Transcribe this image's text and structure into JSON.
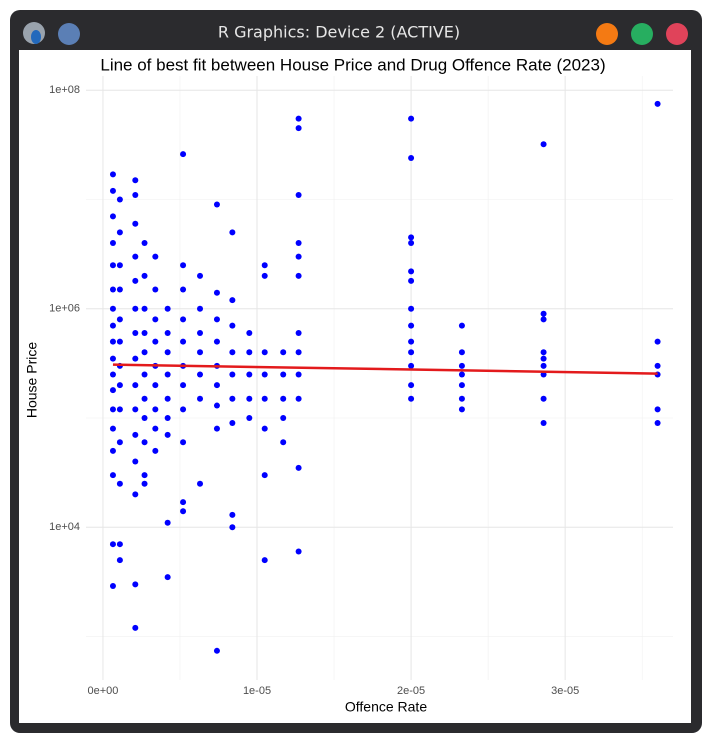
{
  "window": {
    "title": "R Graphics: Device 2 (ACTIVE)"
  },
  "chart_data": {
    "type": "scatter",
    "title": "Line of best fit between House Price and Drug Offence Rate (2023)",
    "x_label": "Offence Rate",
    "y_label": "House Price",
    "color": "#0000ff",
    "log_y": true,
    "grid": true,
    "xlim": [
      -1.1e-06,
      3.7e-05
    ],
    "ylim": [
      400,
      135000000.0
    ],
    "xticks": [
      {
        "value": 0,
        "label": "0e+00"
      },
      {
        "value": 1e-05,
        "label": "1e-05"
      },
      {
        "value": 2e-05,
        "label": "2e-05"
      },
      {
        "value": 3e-05,
        "label": "3e-05"
      }
    ],
    "yticks": [
      {
        "value": 10000,
        "label": "1e+04"
      },
      {
        "value": 1000000,
        "label": "1e+06"
      },
      {
        "value": 100000000,
        "label": "1e+08"
      }
    ],
    "x": [
      6.5e-07,
      6.5e-07,
      6.5e-07,
      6.5e-07,
      6.5e-07,
      6.5e-07,
      6.5e-07,
      6.5e-07,
      6.5e-07,
      6.5e-07,
      6.5e-07,
      6.5e-07,
      6.5e-07,
      6.5e-07,
      6.5e-07,
      6.5e-07,
      6.5e-07,
      6.5e-07,
      1.1e-06,
      1.1e-06,
      1.1e-06,
      1.1e-06,
      1.1e-06,
      1.1e-06,
      1.1e-06,
      1.1e-06,
      1.1e-06,
      1.1e-06,
      1.1e-06,
      1.1e-06,
      1.1e-06,
      2.1e-06,
      2.1e-06,
      2.1e-06,
      2.1e-06,
      2.1e-06,
      2.1e-06,
      2.1e-06,
      2.1e-06,
      2.1e-06,
      2.1e-06,
      2.1e-06,
      2.1e-06,
      2.1e-06,
      2.1e-06,
      2.1e-06,
      2.7e-06,
      2.7e-06,
      2.7e-06,
      2.7e-06,
      2.7e-06,
      2.7e-06,
      2.7e-06,
      2.7e-06,
      2.7e-06,
      2.7e-06,
      2.7e-06,
      3.4e-06,
      3.4e-06,
      3.4e-06,
      3.4e-06,
      3.4e-06,
      3.4e-06,
      3.4e-06,
      3.4e-06,
      3.4e-06,
      4.2e-06,
      4.2e-06,
      4.2e-06,
      4.2e-06,
      4.2e-06,
      4.2e-06,
      4.2e-06,
      4.2e-06,
      4.2e-06,
      5.2e-06,
      5.2e-06,
      5.2e-06,
      5.2e-06,
      5.2e-06,
      5.2e-06,
      5.2e-06,
      5.2e-06,
      5.2e-06,
      5.2e-06,
      5.2e-06,
      6.3e-06,
      6.3e-06,
      6.3e-06,
      6.3e-06,
      6.3e-06,
      6.3e-06,
      6.3e-06,
      7.4e-06,
      7.4e-06,
      7.4e-06,
      7.4e-06,
      7.4e-06,
      7.4e-06,
      7.4e-06,
      7.4e-06,
      7.4e-06,
      8.4e-06,
      8.4e-06,
      8.4e-06,
      8.4e-06,
      8.4e-06,
      8.4e-06,
      8.4e-06,
      8.4e-06,
      8.4e-06,
      9.5e-06,
      9.5e-06,
      9.5e-06,
      9.5e-06,
      9.5e-06,
      1.05e-05,
      1.05e-05,
      1.05e-05,
      1.05e-05,
      1.05e-05,
      1.05e-05,
      1.05e-05,
      1.05e-05,
      1.17e-05,
      1.17e-05,
      1.17e-05,
      1.17e-05,
      1.17e-05,
      1.27e-05,
      1.27e-05,
      1.27e-05,
      1.27e-05,
      1.27e-05,
      1.27e-05,
      1.27e-05,
      1.27e-05,
      1.27e-05,
      1.27e-05,
      1.27e-05,
      1.27e-05,
      2e-05,
      2e-05,
      2e-05,
      2e-05,
      2e-05,
      2e-05,
      2e-05,
      2e-05,
      2e-05,
      2e-05,
      2e-05,
      2e-05,
      2e-05,
      2.33e-05,
      2.33e-05,
      2.33e-05,
      2.33e-05,
      2.33e-05,
      2.33e-05,
      2.33e-05,
      2.86e-05,
      2.86e-05,
      2.86e-05,
      2.86e-05,
      2.86e-05,
      2.86e-05,
      2.86e-05,
      2.86e-05,
      2.86e-05,
      3.6e-05,
      3.6e-05,
      3.6e-05,
      3.6e-05,
      3.6e-05,
      3.6e-05
    ],
    "values": [
      17000000.0,
      12000000.0,
      7000000.0,
      4000000.0,
      2500000.0,
      1500000.0,
      1000000.0,
      700000.0,
      500000.0,
      350000.0,
      250000.0,
      180000.0,
      120000.0,
      80000.0,
      50000.0,
      30000.0,
      7000.0,
      2900.0,
      10000000.0,
      5000000.0,
      2500000.0,
      1500000.0,
      800000.0,
      500000.0,
      300000.0,
      200000.0,
      120000.0,
      60000.0,
      25000.0,
      7000.0,
      5000.0,
      15000000.0,
      11000000.0,
      6000000.0,
      3000000.0,
      1800000.0,
      1000000.0,
      600000.0,
      350000.0,
      200000.0,
      120000.0,
      70000.0,
      40000.0,
      20000.0,
      3000.0,
      1200.0,
      4000000.0,
      2000000.0,
      1000000.0,
      600000.0,
      400000.0,
      250000.0,
      150000.0,
      100000.0,
      60000.0,
      30000.0,
      25000.0,
      3000000.0,
      1500000.0,
      800000.0,
      500000.0,
      300000.0,
      200000.0,
      120000.0,
      80000.0,
      50000.0,
      1000000.0,
      600000.0,
      400000.0,
      250000.0,
      150000.0,
      100000.0,
      70000.0,
      11000.0,
      3500.0,
      26000000.0,
      2500000.0,
      1500000.0,
      800000.0,
      500000.0,
      300000.0,
      200000.0,
      120000.0,
      60000.0,
      17000.0,
      14000.0,
      2000000.0,
      1000000.0,
      600000.0,
      400000.0,
      250000.0,
      150000.0,
      25000.0,
      9000000.0,
      1400000.0,
      800000.0,
      500000.0,
      300000.0,
      200000.0,
      130000.0,
      80000.0,
      740,
      5000000.0,
      1200000.0,
      700000.0,
      400000.0,
      250000.0,
      150000.0,
      90000.0,
      13000.0,
      10000.0,
      600000.0,
      400000.0,
      250000.0,
      150000.0,
      100000.0,
      2500000.0,
      2000000.0,
      400000.0,
      250000.0,
      150000.0,
      80000.0,
      30000.0,
      5000.0,
      400000.0,
      250000.0,
      150000.0,
      100000.0,
      60000.0,
      55000000.0,
      45000000.0,
      11000000.0,
      4000000.0,
      3000000.0,
      2000000.0,
      600000.0,
      400000.0,
      250000.0,
      150000.0,
      35000.0,
      6000.0,
      55000000.0,
      24000000.0,
      4500000.0,
      4000000.0,
      2200000.0,
      1800000.0,
      1000000.0,
      700000.0,
      500000.0,
      400000.0,
      300000.0,
      200000.0,
      150000.0,
      700000.0,
      400000.0,
      300000.0,
      250000.0,
      200000.0,
      150000.0,
      120000.0,
      32000000.0,
      900000.0,
      800000.0,
      400000.0,
      350000.0,
      300000.0,
      250000.0,
      150000.0,
      90000.0,
      75000000.0,
      500000.0,
      300000.0,
      250000.0,
      120000.0,
      90000.0
    ],
    "fit_line": {
      "color": "#e31a1c",
      "x": [
        6.5e-07,
        3.6e-05
      ],
      "values": [
        308000,
        255000
      ]
    }
  }
}
